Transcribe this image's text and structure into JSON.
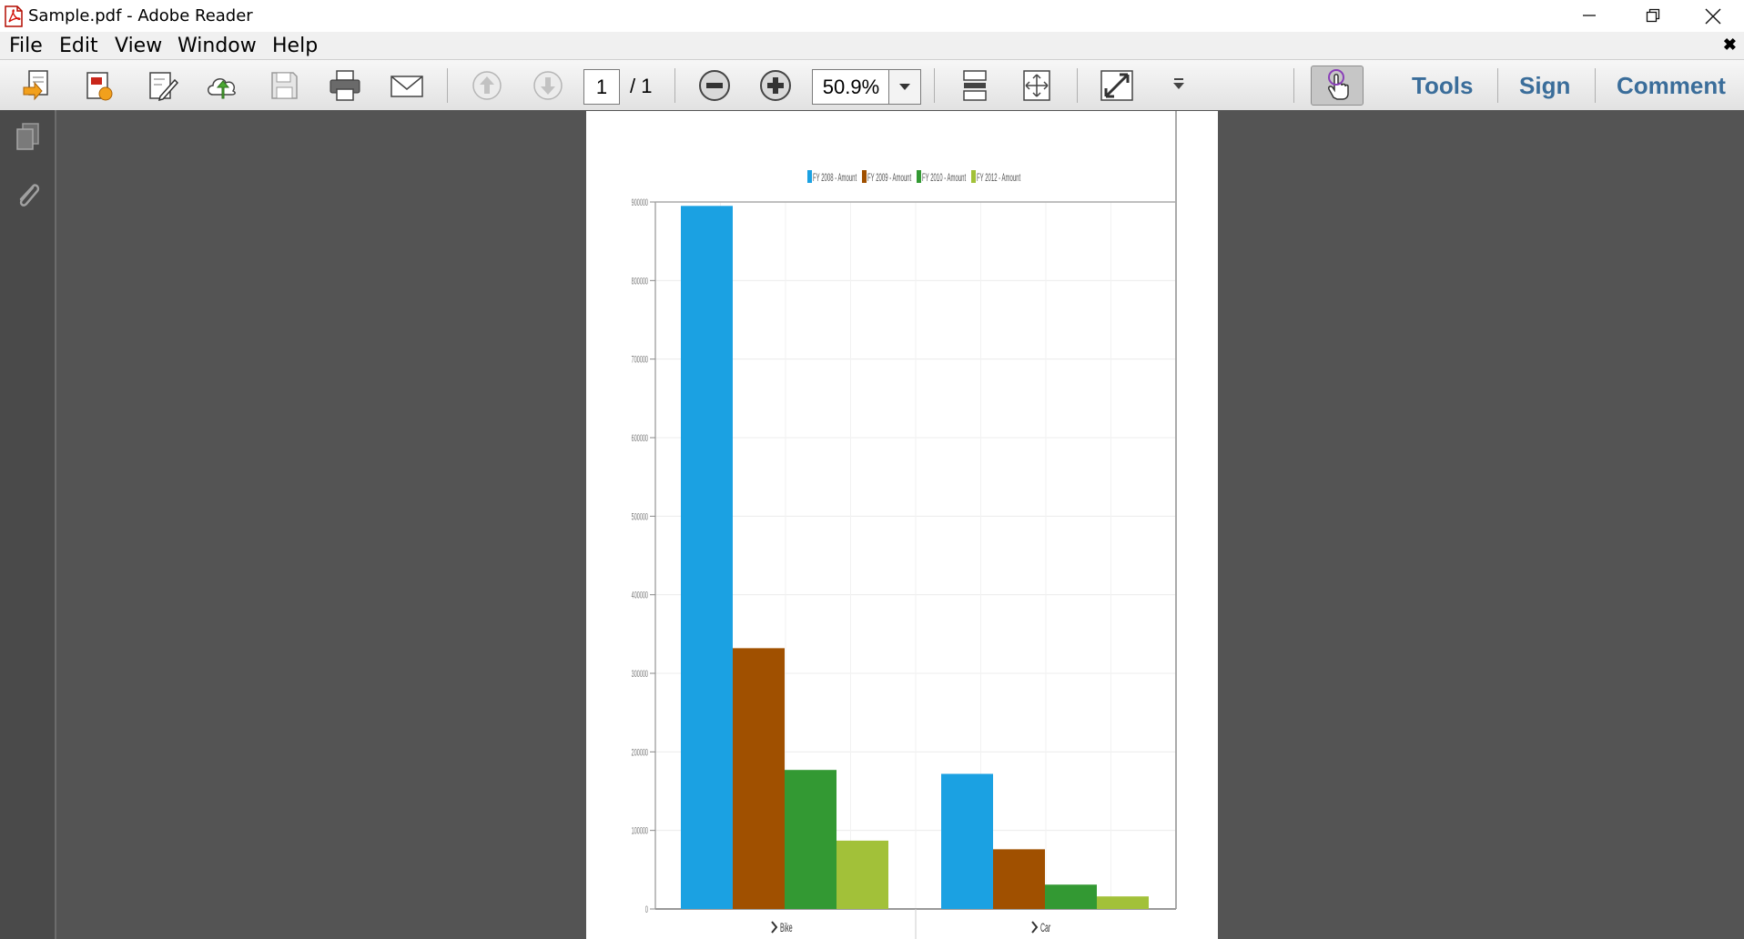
{
  "window": {
    "title": "Sample.pdf - Adobe Reader"
  },
  "menu": {
    "items": [
      "File",
      "Edit",
      "View",
      "Window",
      "Help"
    ]
  },
  "toolbar": {
    "page_current": "1",
    "page_total": "/ 1",
    "zoom": "50.9%",
    "tools_label": "Tools",
    "sign_label": "Sign",
    "comment_label": "Comment"
  },
  "colors": {
    "accent": "#3a6d9a",
    "doc_bg": "#545454",
    "series": [
      "#1ba1e2",
      "#a05000",
      "#339933",
      "#a2c139"
    ]
  },
  "chart_data": {
    "type": "bar",
    "legend_position": "top",
    "categories": [
      "Bike",
      "Car"
    ],
    "series": [
      {
        "name": "FY 2008 - Amount",
        "values": [
          895000,
          172000
        ]
      },
      {
        "name": "FY 2009 - Amount",
        "values": [
          332000,
          76000
        ]
      },
      {
        "name": "FY 2010 - Amount",
        "values": [
          177000,
          31000
        ]
      },
      {
        "name": "FY 2012 - Amount",
        "values": [
          87000,
          16000
        ]
      }
    ],
    "ylim": [
      0,
      900000
    ],
    "yticks": [
      "0",
      "100000",
      "200000",
      "300000",
      "400000",
      "500000",
      "600000",
      "700000",
      "800000",
      "900000"
    ],
    "grid": true
  }
}
